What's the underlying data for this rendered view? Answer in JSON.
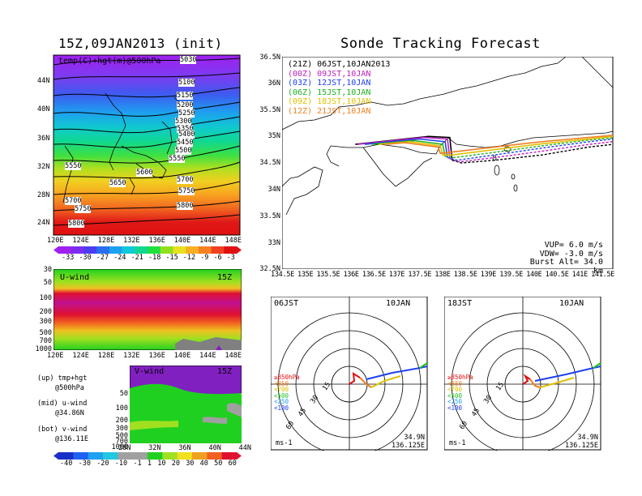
{
  "left_title": "15Z,09JAN2013 (init)",
  "right_title": "Sonde Tracking Forecast",
  "map_panel": {
    "label": "temp(C)+hgt(m)@500hPa",
    "lat_labels": [
      "44N",
      "40N",
      "36N",
      "32N",
      "28N",
      "24N"
    ],
    "lon_labels": [
      "120E",
      "124E",
      "128E",
      "132E",
      "136E",
      "140E",
      "144E",
      "148E"
    ],
    "contour_labels": [
      "5030",
      "5100",
      "5150",
      "5200",
      "5250",
      "5300",
      "5350",
      "5400",
      "5450",
      "5500",
      "5550",
      "5550",
      "5600",
      "5650",
      "5700",
      "5700",
      "5750",
      "5750",
      "5800",
      "5800"
    ],
    "colorbar_labels": [
      "-33",
      "-30",
      "-27",
      "-24",
      "-21",
      "-18",
      "-15",
      "-12",
      "-9",
      "-6",
      "-3"
    ],
    "colorbar_colors": [
      "#a020f0",
      "#7b2cf0",
      "#4b3cf0",
      "#2a6ef0",
      "#1ea0f0",
      "#10c8d8",
      "#10d890",
      "#20e040",
      "#90e020",
      "#e8e020",
      "#f8b020",
      "#f88020",
      "#f04020",
      "#e01010"
    ]
  },
  "uwind_panel": {
    "label": "U-wind",
    "time": "15Z",
    "p_labels": [
      "30",
      "50",
      "100",
      "200",
      "300",
      "500",
      "700",
      "1000"
    ],
    "lon_labels": [
      "120E",
      "124E",
      "128E",
      "132E",
      "136E",
      "140E",
      "144E",
      "148E"
    ]
  },
  "vwind_panel": {
    "label": "V-wind",
    "time": "15Z",
    "p_labels": [
      "50",
      "100",
      "200",
      "300",
      "500",
      "700",
      "1000"
    ],
    "lat_labels": [
      "28N",
      "32N",
      "36N",
      "40N",
      "44N"
    ]
  },
  "legend_notes": [
    {
      "line1": "(up) tmp+hgt",
      "line2": "@500hPa"
    },
    {
      "line1": "(mid) u-wind",
      "line2": "@34.86N"
    },
    {
      "line1": "(bot) v-wind",
      "line2": "@136.11E"
    }
  ],
  "wind_colorbar": {
    "labels": [
      "-40",
      "-30",
      "-20",
      "-10",
      "-1",
      "1",
      "10",
      "20",
      "30",
      "40",
      "50",
      "60"
    ],
    "colors": [
      "#1830c8",
      "#2060f0",
      "#20a0f0",
      "#20c8e0",
      "#a0a0a0",
      "#a0a0a0",
      "#20d020",
      "#a0e020",
      "#f0e020",
      "#f0a020",
      "#f06020",
      "#e01030"
    ]
  },
  "track_panel": {
    "lat_labels": [
      "36.5N",
      "36N",
      "35.5N",
      "35N",
      "34.5N",
      "34N",
      "33.5N",
      "33N",
      "32.5N"
    ],
    "lon_labels": [
      "134.5E",
      "135E",
      "135.5E",
      "136E",
      "136.5E",
      "137E",
      "137.5E",
      "138E",
      "138.5E",
      "139E",
      "139.5E",
      "140E",
      "140.5E",
      "141E",
      "141.5E"
    ],
    "legend": [
      {
        "text": "(21Z) 06JST,10JAN2013",
        "color": "#000000"
      },
      {
        "text": "(00Z) 09JST,10JAN",
        "color": "#c020c0"
      },
      {
        "text": "(03Z) 12JST,10JAN",
        "color": "#2040f0"
      },
      {
        "text": "(06Z) 15JST,10JAN",
        "color": "#20b020"
      },
      {
        "text": "(09Z) 18JST,10JAN",
        "color": "#e0c000"
      },
      {
        "text": "(12Z) 21JST,10JAN",
        "color": "#f08020"
      }
    ],
    "params": [
      "VUP= 6.0 m/s",
      "VDW= -3.0 m/s",
      "Burst Alt= 34.0 km"
    ]
  },
  "hodographs": [
    {
      "time": "06JST",
      "date": "10JAN",
      "ring_labels": [
        "15",
        "30",
        "45",
        "60"
      ],
      "units": "ms-1",
      "lat": "34.9N",
      "lon": "136.125E"
    },
    {
      "time": "18JST",
      "date": "10JAN",
      "ring_labels": [
        "15",
        "30",
        "45",
        "60"
      ],
      "units": "ms-1",
      "lat": "34.9N",
      "lon": "136.125E"
    }
  ],
  "hodo_legend": [
    {
      "text": "≥850hPa",
      "color": "#e01010"
    },
    {
      "text": "<850",
      "color": "#f08020"
    },
    {
      "text": "<700",
      "color": "#e0c000"
    },
    {
      "text": "<500",
      "color": "#20c020"
    },
    {
      "text": "<250",
      "color": "#20a0f0"
    },
    {
      "text": "<100",
      "color": "#2040f0"
    }
  ],
  "chart_data": {
    "type": "line",
    "title": "Sonde Tracking Forecast",
    "xlim": [
      134.5,
      141.5
    ],
    "ylim": [
      32.5,
      36.5
    ],
    "series": [
      {
        "name": "(21Z) 06JST,10JAN2013",
        "x": [
          136.05,
          137.6,
          138.05,
          138.1,
          138.3,
          139.0,
          140.0,
          141.0,
          141.5
        ],
        "y": [
          34.85,
          35.0,
          34.98,
          34.55,
          34.5,
          34.55,
          34.65,
          34.8,
          34.85
        ]
      },
      {
        "name": "(00Z) 09JST,10JAN",
        "x": [
          136.1,
          137.5,
          138.0,
          138.05,
          138.25,
          139.0,
          140.0,
          141.0,
          141.5
        ],
        "y": [
          34.85,
          34.98,
          34.95,
          34.58,
          34.52,
          34.6,
          34.72,
          34.85,
          34.9
        ]
      },
      {
        "name": "(03Z) 12JST,10JAN",
        "x": [
          136.25,
          137.4,
          137.95,
          138.0,
          138.2,
          139.0,
          140.0,
          141.0,
          141.5
        ],
        "y": [
          34.85,
          34.95,
          34.9,
          34.6,
          34.55,
          34.65,
          34.78,
          34.9,
          34.95
        ]
      },
      {
        "name": "(06Z) 15JST,10JAN",
        "x": [
          136.4,
          137.3,
          137.9,
          137.95,
          138.15,
          139.0,
          140.0,
          141.0,
          141.5
        ],
        "y": [
          34.85,
          34.92,
          34.85,
          34.62,
          34.6,
          34.7,
          34.82,
          34.93,
          34.97
        ]
      },
      {
        "name": "(09Z) 18JST,10JAN",
        "x": [
          136.55,
          137.2,
          137.85,
          137.9,
          138.1,
          139.0,
          140.0,
          141.0,
          141.5
        ],
        "y": [
          34.85,
          34.9,
          34.82,
          34.65,
          34.65,
          34.75,
          34.86,
          34.95,
          35.0
        ]
      },
      {
        "name": "(12Z) 21JST,10JAN",
        "x": [
          136.7,
          137.1,
          137.8,
          137.85,
          138.05,
          139.0,
          140.0,
          141.0,
          141.5
        ],
        "y": [
          34.85,
          34.88,
          34.8,
          34.68,
          34.7,
          34.8,
          34.9,
          34.98,
          35.02
        ]
      }
    ]
  }
}
